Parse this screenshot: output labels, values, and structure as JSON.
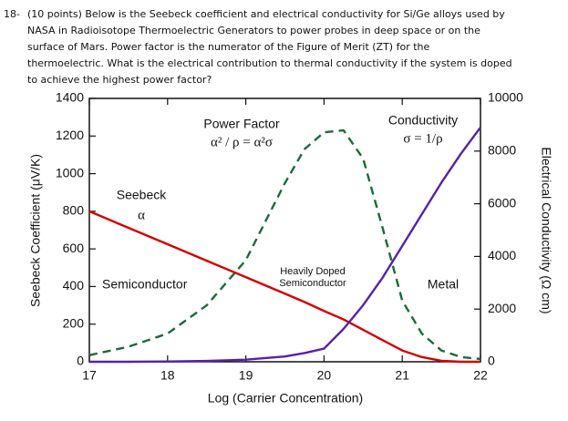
{
  "question": {
    "number": "18-",
    "lines": [
      "(10 points) Below is the Seebeck coefficient and electrical conductivity for Si/Ge alloys used by",
      "NASA in Radioisotope Thermoelectric Generators to power probes in deep space or on the",
      "surface of Mars. Power factor is the numerator of the Figure of Merit (ZT) for the",
      "thermoelectric. What is the electrical contribution to thermal conductivity if the system is doped",
      "to achieve the highest power factor?"
    ]
  },
  "chart_data": {
    "type": "line",
    "x_label": "Log (Carrier Concentration)",
    "y_label": "Seebeck Coefficient (μV/K)",
    "y2_label": "Electrical Conductivity (Ω cm)",
    "x": [
      17,
      17.5,
      18,
      18.5,
      19,
      19.5,
      19.75,
      20,
      20.25,
      20.5,
      20.75,
      21,
      21.25,
      21.5,
      21.75,
      22
    ],
    "series": [
      {
        "name": "Seebeck",
        "color": "#d40000",
        "dashed": false,
        "values": [
          800,
          712,
          625,
          537,
          450,
          362,
          318,
          270,
          225,
          170,
          115,
          60,
          25,
          5,
          0,
          0
        ]
      },
      {
        "name": "Power Factor",
        "color": "#1a6b33",
        "dashed": true,
        "values": [
          35,
          80,
          150,
          300,
          540,
          950,
          1130,
          1220,
          1230,
          1080,
          710,
          325,
          150,
          60,
          25,
          15
        ]
      },
      {
        "name": "Conductivity",
        "color": "#5522aa",
        "dashed": false,
        "axis": "y2",
        "values": [
          0,
          0,
          10,
          30,
          80,
          200,
          330,
          500,
          1250,
          2150,
          3200,
          4400,
          5600,
          6800,
          7900,
          8900
        ]
      }
    ],
    "annotations": [
      "α² / ρ = α²σ",
      "σ = 1/ρ",
      "α",
      "Semiconductor",
      "Heavily Doped",
      "Semiconductor",
      "Metal"
    ],
    "xlim": [
      17,
      22
    ],
    "xticks": [
      17,
      18,
      19,
      20,
      21,
      22
    ],
    "ylim": [
      0,
      1400
    ],
    "yticks": [
      0,
      200,
      400,
      600,
      800,
      1000,
      1200,
      1400
    ],
    "y2lim": [
      0,
      10000
    ],
    "y2ticks": [
      0,
      2000,
      4000,
      6000,
      8000,
      10000
    ],
    "grid": false
  }
}
